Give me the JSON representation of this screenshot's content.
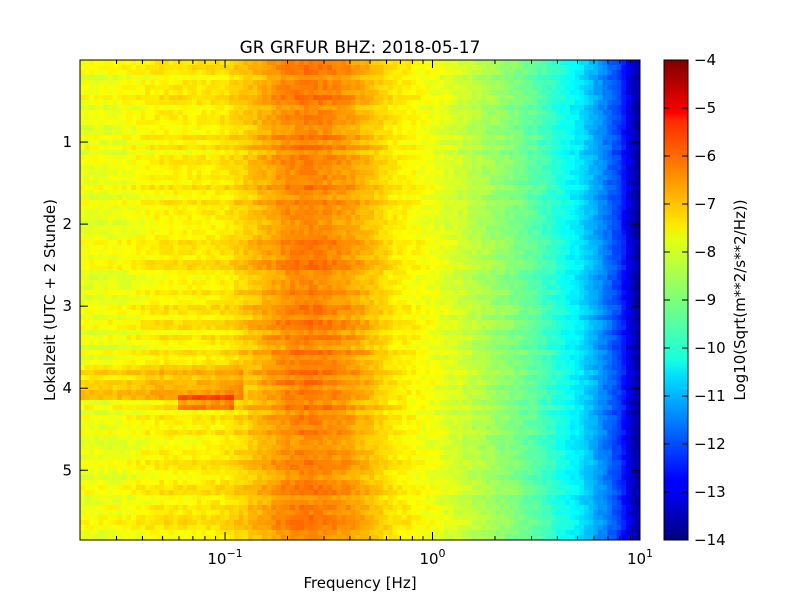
{
  "chart_data": {
    "type": "heatmap",
    "title": "GR GRFUR BHZ: 2018-05-17",
    "xlabel": "Frequency [Hz]",
    "ylabel": "Lokalzeit (UTC + 2 Stunde)",
    "x_scale": "log",
    "xlim": [
      0.02,
      10
    ],
    "ylim": [
      0,
      5.85
    ],
    "y_inverted": true,
    "x_ticks": [
      {
        "value": 0.1,
        "base": "10",
        "exp": "−1"
      },
      {
        "value": 1,
        "base": "10",
        "exp": "0"
      },
      {
        "value": 10,
        "base": "10",
        "exp": "1"
      }
    ],
    "y_ticks": [
      {
        "value": 1,
        "label": "1"
      },
      {
        "value": 2,
        "label": "2"
      },
      {
        "value": 3,
        "label": "3"
      },
      {
        "value": 4,
        "label": "4"
      },
      {
        "value": 5,
        "label": "5"
      }
    ],
    "colorbar": {
      "label": "Log10(Sqrt(m**2/s**2/Hz))",
      "colormap": "jet",
      "range": [
        -14,
        -4
      ],
      "ticks": [
        {
          "value": -4,
          "label": "−4"
        },
        {
          "value": -5,
          "label": "−5"
        },
        {
          "value": -6,
          "label": "−6"
        },
        {
          "value": -7,
          "label": "−7"
        },
        {
          "value": -8,
          "label": "−8"
        },
        {
          "value": -9,
          "label": "−9"
        },
        {
          "value": -10,
          "label": "−10"
        },
        {
          "value": -11,
          "label": "−11"
        },
        {
          "value": -12,
          "label": "−12"
        },
        {
          "value": -13,
          "label": "−13"
        },
        {
          "value": -14,
          "label": "−14"
        }
      ]
    },
    "frequency_bins": [
      0.03,
      0.05,
      0.075,
      0.1,
      0.13,
      0.16,
      0.2,
      0.25,
      0.32,
      0.4,
      0.5,
      0.63,
      0.8,
      1.0,
      1.25,
      1.6,
      2.0,
      2.5,
      3.2,
      4.0,
      5.0,
      6.3,
      8.0,
      9.5
    ],
    "mean_spectrum": [
      -7.9,
      -7.6,
      -7.6,
      -7.5,
      -7.2,
      -6.9,
      -6.6,
      -6.5,
      -6.6,
      -6.8,
      -7.1,
      -7.5,
      -7.7,
      -7.9,
      -8.1,
      -8.4,
      -8.7,
      -9.0,
      -9.4,
      -9.9,
      -10.4,
      -11.2,
      -12.2,
      -13.6
    ],
    "anomalies": [
      {
        "time_start": 3.7,
        "time_end": 3.95,
        "freq_max": 0.12,
        "delta": 0.4
      },
      {
        "time_start": 3.95,
        "time_end": 4.15,
        "freq_max": 0.12,
        "delta": 0.7
      },
      {
        "time_start": 4.1,
        "time_end": 4.25,
        "freq_min": 0.06,
        "freq_max": 0.11,
        "delta": 0.9
      }
    ]
  }
}
